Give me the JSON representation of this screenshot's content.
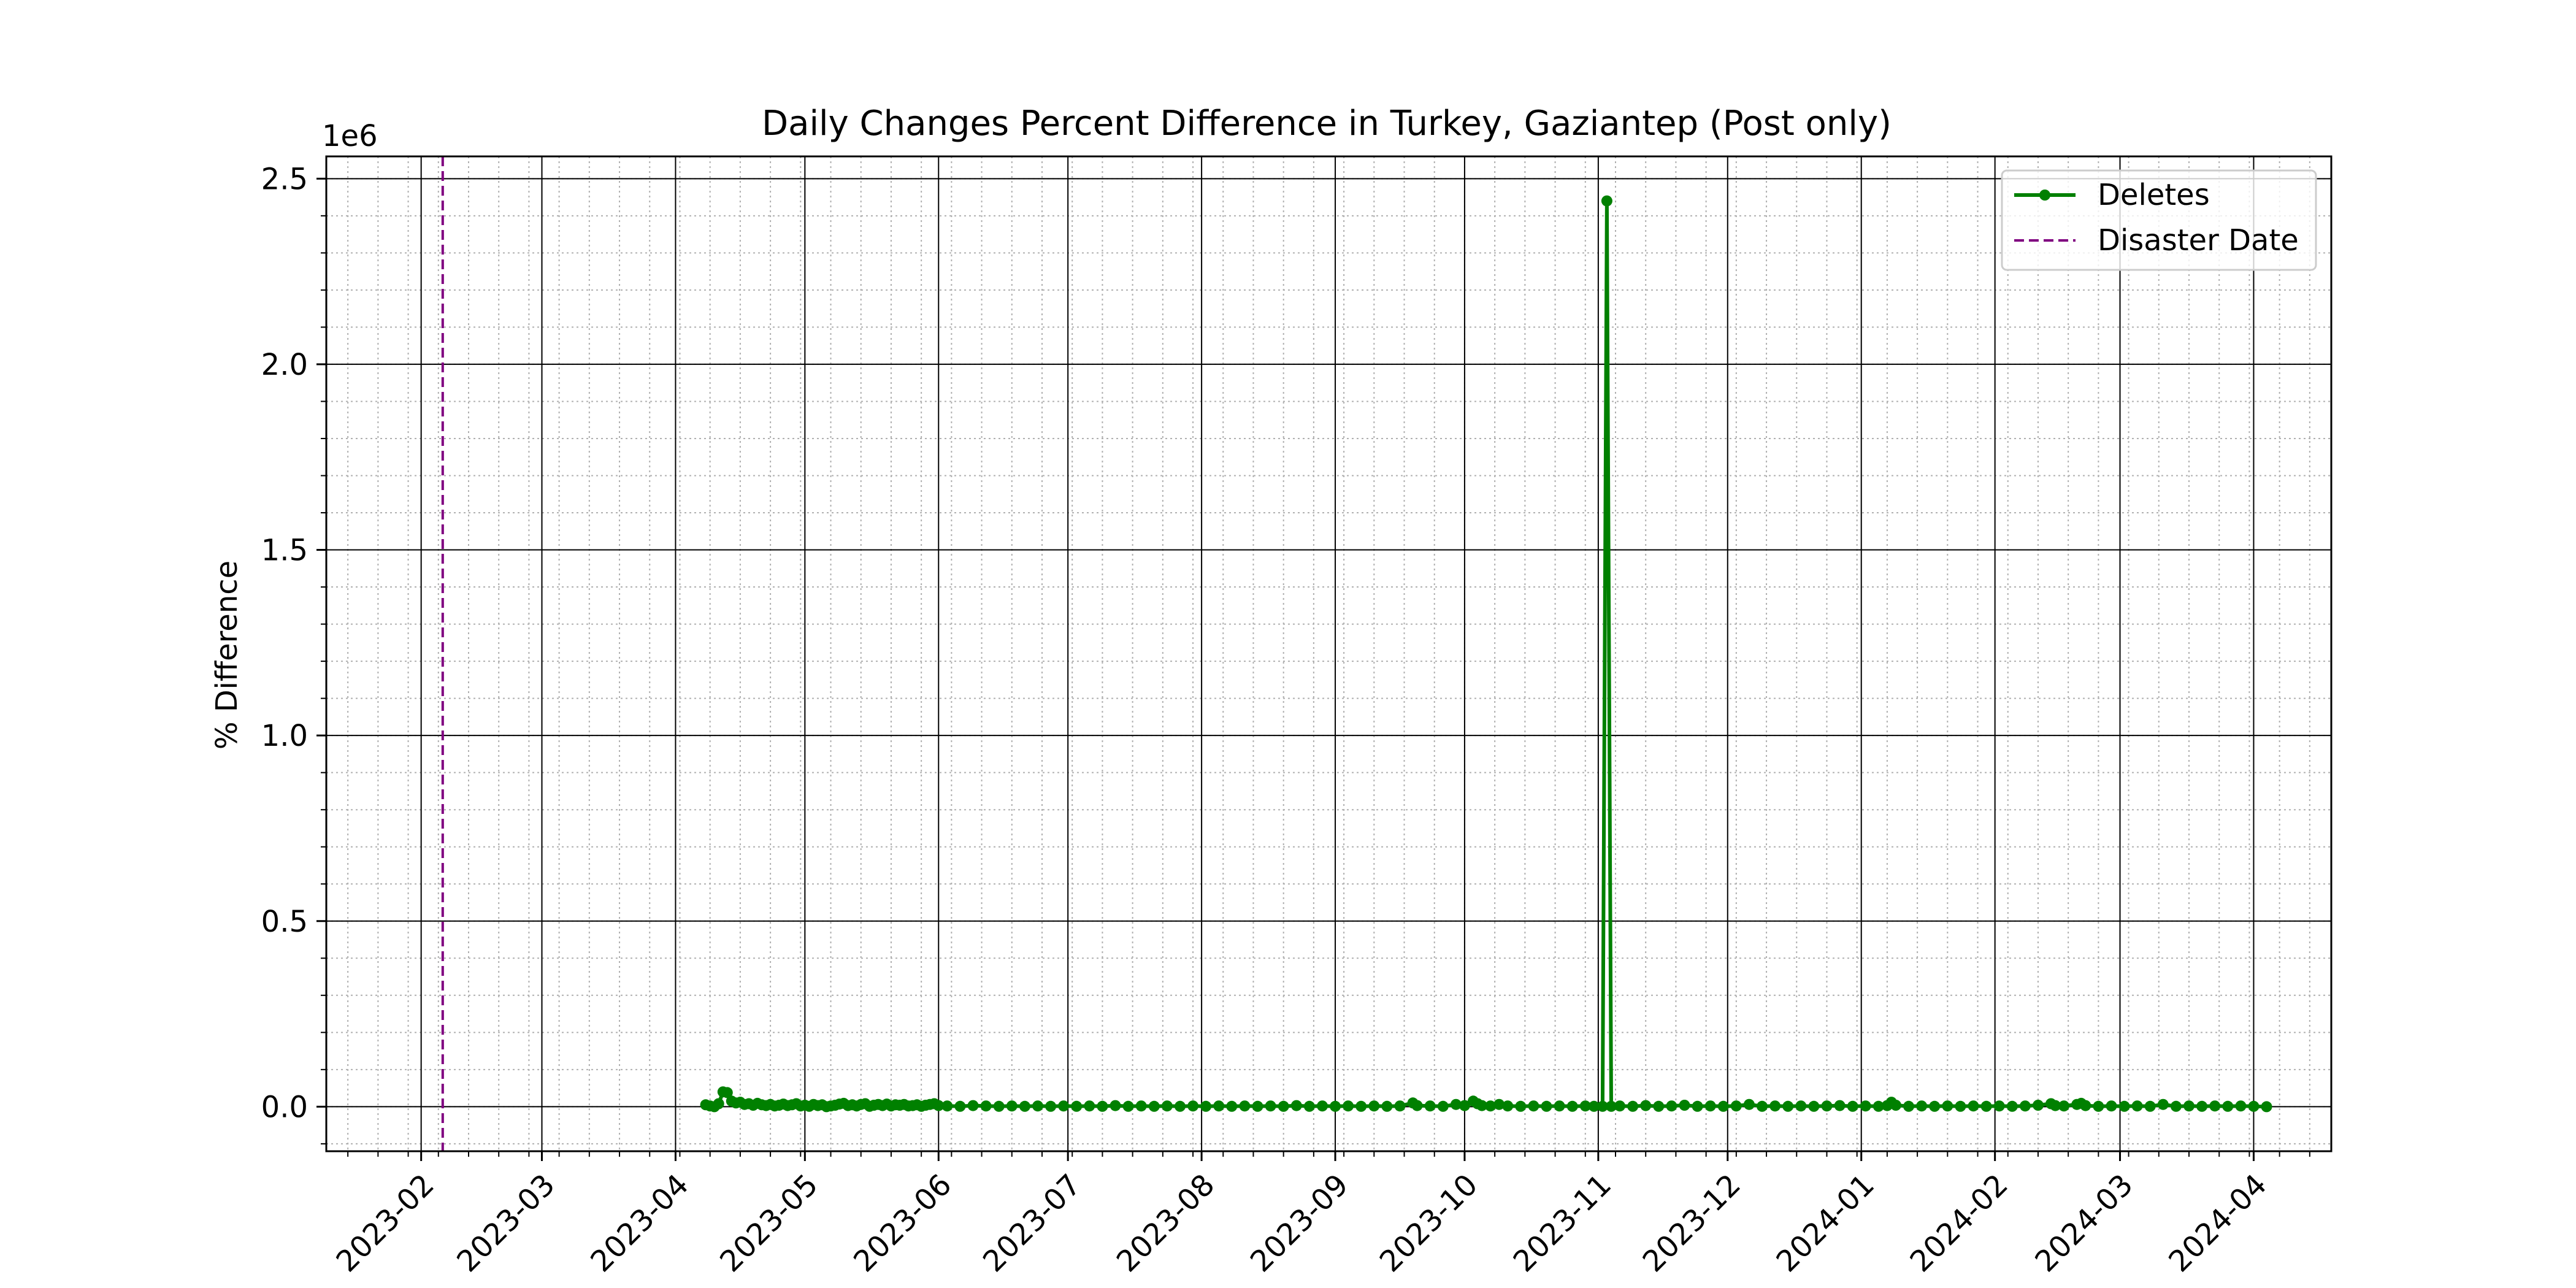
{
  "chart_data": {
    "type": "line",
    "title": "Daily Changes Percent Difference in Turkey, Gaziantep (Post only)",
    "xlabel": "",
    "ylabel": "% Difference",
    "y_offset_label": "1e6",
    "xlim": [
      "2023-01-10",
      "2024-04-19"
    ],
    "ylim": [
      -120000,
      2560000
    ],
    "x_ticks": [
      "2023-02",
      "2023-03",
      "2023-04",
      "2023-05",
      "2023-06",
      "2023-07",
      "2023-08",
      "2023-09",
      "2023-10",
      "2023-11",
      "2023-12",
      "2024-01",
      "2024-02",
      "2024-03",
      "2024-04"
    ],
    "y_ticks": [
      0,
      500000,
      1000000,
      1500000,
      2000000,
      2500000
    ],
    "y_tick_labels": [
      "0.0",
      "0.5",
      "1.0",
      "1.5",
      "2.0",
      "2.5"
    ],
    "grid": {
      "major": true,
      "minor": true
    },
    "legend_position": "upper-right",
    "legend_entries": [
      "Deletes",
      "Disaster Date"
    ],
    "disaster_date": "2023-02-06",
    "series": [
      {
        "name": "Deletes",
        "color": "#008000",
        "points": [
          [
            "2023-04-08",
            5000
          ],
          [
            "2023-04-09",
            2000
          ],
          [
            "2023-04-10",
            0
          ],
          [
            "2023-04-11",
            8000
          ],
          [
            "2023-04-12",
            40000
          ],
          [
            "2023-04-13",
            38000
          ],
          [
            "2023-04-14",
            15000
          ],
          [
            "2023-04-15",
            10000
          ],
          [
            "2023-04-16",
            12000
          ],
          [
            "2023-04-17",
            6000
          ],
          [
            "2023-04-18",
            8000
          ],
          [
            "2023-04-19",
            4000
          ],
          [
            "2023-04-20",
            9000
          ],
          [
            "2023-04-21",
            5000
          ],
          [
            "2023-04-22",
            3000
          ],
          [
            "2023-04-23",
            6000
          ],
          [
            "2023-04-24",
            2000
          ],
          [
            "2023-04-25",
            4000
          ],
          [
            "2023-04-26",
            7000
          ],
          [
            "2023-04-27",
            3000
          ],
          [
            "2023-04-28",
            5000
          ],
          [
            "2023-04-29",
            8000
          ],
          [
            "2023-04-30",
            2000
          ],
          [
            "2023-05-01",
            4000
          ],
          [
            "2023-05-02",
            1000
          ],
          [
            "2023-05-03",
            6000
          ],
          [
            "2023-05-04",
            3000
          ],
          [
            "2023-05-05",
            5000
          ],
          [
            "2023-05-06",
            0
          ],
          [
            "2023-05-07",
            2000
          ],
          [
            "2023-05-08",
            4000
          ],
          [
            "2023-05-09",
            7000
          ],
          [
            "2023-05-10",
            9000
          ],
          [
            "2023-05-11",
            3000
          ],
          [
            "2023-05-12",
            5000
          ],
          [
            "2023-05-13",
            2000
          ],
          [
            "2023-05-14",
            6000
          ],
          [
            "2023-05-15",
            8000
          ],
          [
            "2023-05-16",
            1000
          ],
          [
            "2023-05-17",
            4000
          ],
          [
            "2023-05-18",
            6000
          ],
          [
            "2023-05-19",
            3000
          ],
          [
            "2023-05-20",
            7000
          ],
          [
            "2023-05-21",
            2000
          ],
          [
            "2023-05-22",
            5000
          ],
          [
            "2023-05-23",
            4000
          ],
          [
            "2023-05-24",
            6000
          ],
          [
            "2023-05-25",
            2000
          ],
          [
            "2023-05-26",
            3000
          ],
          [
            "2023-05-27",
            5000
          ],
          [
            "2023-05-28",
            1000
          ],
          [
            "2023-05-29",
            4000
          ],
          [
            "2023-05-30",
            6000
          ],
          [
            "2023-05-31",
            8000
          ],
          [
            "2023-06-01",
            3000
          ],
          [
            "2023-06-03",
            2000
          ],
          [
            "2023-06-06",
            1000
          ],
          [
            "2023-06-09",
            3000
          ],
          [
            "2023-06-12",
            2000
          ],
          [
            "2023-06-15",
            1000
          ],
          [
            "2023-06-18",
            2000
          ],
          [
            "2023-06-21",
            1000
          ],
          [
            "2023-06-24",
            2000
          ],
          [
            "2023-06-27",
            1000
          ],
          [
            "2023-06-30",
            2000
          ],
          [
            "2023-07-03",
            1000
          ],
          [
            "2023-07-06",
            2000
          ],
          [
            "2023-07-09",
            1000
          ],
          [
            "2023-07-12",
            3000
          ],
          [
            "2023-07-15",
            1000
          ],
          [
            "2023-07-18",
            2000
          ],
          [
            "2023-07-21",
            1000
          ],
          [
            "2023-07-24",
            2000
          ],
          [
            "2023-07-27",
            1000
          ],
          [
            "2023-07-30",
            2000
          ],
          [
            "2023-08-02",
            1000
          ],
          [
            "2023-08-05",
            2000
          ],
          [
            "2023-08-08",
            1000
          ],
          [
            "2023-08-11",
            2000
          ],
          [
            "2023-08-14",
            1000
          ],
          [
            "2023-08-17",
            2000
          ],
          [
            "2023-08-20",
            1000
          ],
          [
            "2023-08-23",
            3000
          ],
          [
            "2023-08-26",
            1000
          ],
          [
            "2023-08-29",
            2000
          ],
          [
            "2023-09-01",
            1000
          ],
          [
            "2023-09-04",
            2000
          ],
          [
            "2023-09-07",
            1000
          ],
          [
            "2023-09-10",
            2000
          ],
          [
            "2023-09-13",
            1000
          ],
          [
            "2023-09-16",
            2000
          ],
          [
            "2023-09-19",
            10000
          ],
          [
            "2023-09-20",
            3000
          ],
          [
            "2023-09-23",
            2000
          ],
          [
            "2023-09-26",
            1000
          ],
          [
            "2023-09-29",
            6000
          ],
          [
            "2023-10-01",
            3000
          ],
          [
            "2023-10-03",
            15000
          ],
          [
            "2023-10-04",
            8000
          ],
          [
            "2023-10-05",
            3000
          ],
          [
            "2023-10-07",
            2000
          ],
          [
            "2023-10-09",
            6000
          ],
          [
            "2023-10-11",
            2000
          ],
          [
            "2023-10-14",
            1000
          ],
          [
            "2023-10-17",
            2000
          ],
          [
            "2023-10-20",
            1000
          ],
          [
            "2023-10-23",
            2000
          ],
          [
            "2023-10-26",
            1000
          ],
          [
            "2023-10-29",
            2000
          ],
          [
            "2023-10-31",
            1000
          ],
          [
            "2023-11-02",
            1000
          ],
          [
            "2023-11-03",
            2440000
          ],
          [
            "2023-11-04",
            1000
          ],
          [
            "2023-11-06",
            2000
          ],
          [
            "2023-11-09",
            1000
          ],
          [
            "2023-11-12",
            3000
          ],
          [
            "2023-11-15",
            1000
          ],
          [
            "2023-11-18",
            2000
          ],
          [
            "2023-11-21",
            4000
          ],
          [
            "2023-11-24",
            1000
          ],
          [
            "2023-11-27",
            2000
          ],
          [
            "2023-11-30",
            1000
          ],
          [
            "2023-12-03",
            2000
          ],
          [
            "2023-12-06",
            6000
          ],
          [
            "2023-12-09",
            1000
          ],
          [
            "2023-12-12",
            2000
          ],
          [
            "2023-12-15",
            1000
          ],
          [
            "2023-12-18",
            2000
          ],
          [
            "2023-12-21",
            1000
          ],
          [
            "2023-12-24",
            2000
          ],
          [
            "2023-12-27",
            3000
          ],
          [
            "2023-12-30",
            1000
          ],
          [
            "2024-01-02",
            2000
          ],
          [
            "2024-01-05",
            1000
          ],
          [
            "2024-01-07",
            3000
          ],
          [
            "2024-01-08",
            12000
          ],
          [
            "2024-01-09",
            4000
          ],
          [
            "2024-01-12",
            1000
          ],
          [
            "2024-01-15",
            2000
          ],
          [
            "2024-01-18",
            1000
          ],
          [
            "2024-01-21",
            2000
          ],
          [
            "2024-01-24",
            1000
          ],
          [
            "2024-01-27",
            2000
          ],
          [
            "2024-01-30",
            1000
          ],
          [
            "2024-02-02",
            2000
          ],
          [
            "2024-02-05",
            1000
          ],
          [
            "2024-02-08",
            2000
          ],
          [
            "2024-02-11",
            4000
          ],
          [
            "2024-02-14",
            8000
          ],
          [
            "2024-02-15",
            3000
          ],
          [
            "2024-02-17",
            2000
          ],
          [
            "2024-02-20",
            6000
          ],
          [
            "2024-02-21",
            9000
          ],
          [
            "2024-02-22",
            3000
          ],
          [
            "2024-02-25",
            1000
          ],
          [
            "2024-02-28",
            2000
          ],
          [
            "2024-03-02",
            1000
          ],
          [
            "2024-03-05",
            2000
          ],
          [
            "2024-03-08",
            1000
          ],
          [
            "2024-03-11",
            6000
          ],
          [
            "2024-03-14",
            1000
          ],
          [
            "2024-03-17",
            2000
          ],
          [
            "2024-03-20",
            1000
          ],
          [
            "2024-03-23",
            2000
          ],
          [
            "2024-03-26",
            1000
          ],
          [
            "2024-03-29",
            2000
          ],
          [
            "2024-04-01",
            1000
          ],
          [
            "2024-04-04",
            0
          ]
        ]
      }
    ]
  }
}
